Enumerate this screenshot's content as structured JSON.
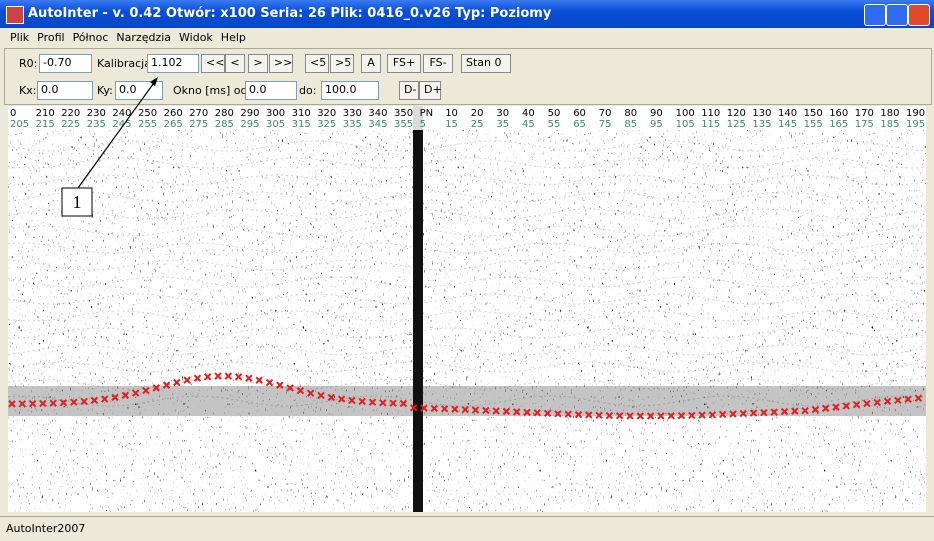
{
  "window": {
    "title": "AutoInter - v. 0.42 Otwór: x100 Seria: 26 Plik: 0416_0.v26 Typ: Poziomy"
  },
  "menu": [
    "Plik",
    "Profil",
    "Północ",
    "Narzędzia",
    "Widok",
    "Help"
  ],
  "toolbar": {
    "r0_label": "R0:",
    "r0_value": "-0.70",
    "kalibracja_label": "Kalibracja:",
    "kalibracja_value": "1.102",
    "nav_buttons": [
      "<<",
      "<",
      ">",
      ">>"
    ],
    "step_buttons": [
      "<5",
      ">5"
    ],
    "a_button": "A",
    "fs_buttons": [
      "FS+",
      "FS-"
    ],
    "stan": "Stan 0",
    "kx_label": "Kx:",
    "kx_value": "0.0",
    "ky_label": "Ky:",
    "ky_value": "0.0",
    "okno_label": "Okno [ms] od:",
    "okno_value": "0.0",
    "do_label": "do:",
    "do_value": "100.0",
    "d_buttons": [
      "D-",
      "D+"
    ]
  },
  "scale": {
    "top": [
      "0",
      "210",
      "220",
      "230",
      "240",
      "250",
      "260",
      "270",
      "280",
      "290",
      "300",
      "310",
      "320",
      "330",
      "340",
      "350",
      "PN",
      "10",
      "20",
      "30",
      "40",
      "50",
      "60",
      "70",
      "80",
      "90",
      "100",
      "110",
      "120",
      "130",
      "140",
      "150",
      "160",
      "170",
      "180",
      "190"
    ],
    "bottom": [
      "205",
      "215",
      "225",
      "235",
      "245",
      "255",
      "265",
      "275",
      "285",
      "295",
      "305",
      "315",
      "325",
      "335",
      "345",
      "355",
      "5",
      "15",
      "25",
      "35",
      "45",
      "55",
      "65",
      "75",
      "85",
      "95",
      "105",
      "115",
      "125",
      "135",
      "145",
      "155",
      "165",
      "175",
      "185",
      "195"
    ]
  },
  "annotation": "1",
  "status": "AutoInter2007"
}
